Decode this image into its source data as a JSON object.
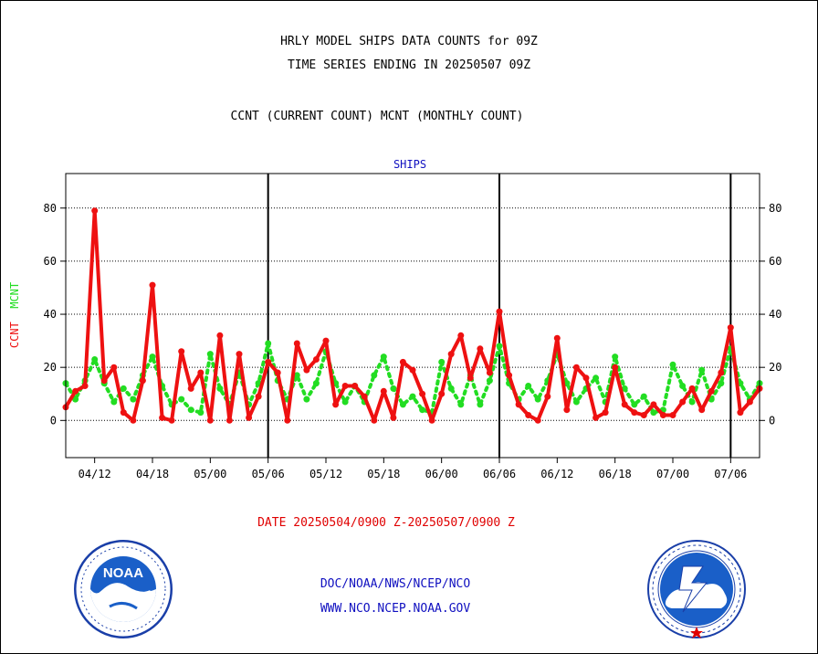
{
  "header": {
    "title_line1": "HRLY MODEL SHIPS DATA COUNTS for 09Z",
    "title_line2": "TIME SERIES ENDING IN 20250507 09Z",
    "title_line3": "CCNT (CURRENT COUNT) MCNT (MONTHLY COUNT)"
  },
  "footer": {
    "date_range": "DATE 20250504/0900 Z-20250507/0900 Z",
    "org": "DOC/NOAA/NWS/NCEP/NCO",
    "url": "WWW.NCO.NCEP.NOAA.GOV"
  },
  "y_axis_label": {
    "ccnt": "CCNT",
    "mcnt": "MCNT"
  },
  "colors": {
    "ccnt": "#ee1111",
    "mcnt": "#22dd22",
    "grid": "#000000",
    "subtitle": "#1010c0",
    "ticks": "#000000"
  },
  "logos": {
    "left": "NOAA",
    "right": "NATIONAL WEATHER SERVICE"
  },
  "chart_data": {
    "type": "line",
    "title": "SHIPS",
    "xlabel": "",
    "ylabel": "CCNT MCNT",
    "ylim": [
      -14,
      93
    ],
    "yticks": [
      0,
      20,
      40,
      60,
      80
    ],
    "xlim": [
      0,
      96
    ],
    "xticks": [
      {
        "pos": 4,
        "label": "04/12"
      },
      {
        "pos": 12,
        "label": "04/18"
      },
      {
        "pos": 20,
        "label": "05/00"
      },
      {
        "pos": 28,
        "label": "05/06"
      },
      {
        "pos": 36,
        "label": "05/12"
      },
      {
        "pos": 44,
        "label": "05/18"
      },
      {
        "pos": 52,
        "label": "06/00"
      },
      {
        "pos": 60,
        "label": "06/06"
      },
      {
        "pos": 68,
        "label": "06/12"
      },
      {
        "pos": 76,
        "label": "06/18"
      },
      {
        "pos": 84,
        "label": "07/00"
      },
      {
        "pos": 92,
        "label": "07/06"
      }
    ],
    "day_separators": [
      28,
      60,
      92
    ],
    "grid": true,
    "series": [
      {
        "name": "CCNT",
        "values": [
          5,
          11,
          13,
          79,
          15,
          20,
          3,
          0,
          15,
          51,
          1,
          0,
          26,
          12,
          18,
          0,
          32,
          0,
          25,
          1,
          9,
          22,
          18,
          0,
          29,
          19,
          23,
          30,
          6,
          13,
          13,
          9,
          0,
          11,
          1,
          22,
          19,
          10,
          0,
          10,
          25,
          32,
          16,
          27,
          18,
          41,
          17,
          6,
          2,
          0,
          9,
          31,
          4,
          20,
          16,
          1,
          3,
          20,
          6,
          3,
          2,
          6,
          2,
          2,
          7,
          12,
          4,
          11,
          18,
          35,
          3,
          7,
          12
        ]
      },
      {
        "name": "MCNT",
        "values": [
          14,
          8,
          15,
          23,
          14,
          7,
          12,
          8,
          17,
          24,
          13,
          6,
          8,
          4,
          3,
          25,
          12,
          6,
          18,
          6,
          14,
          29,
          15,
          8,
          17,
          8,
          14,
          26,
          14,
          7,
          13,
          7,
          17,
          24,
          12,
          6,
          9,
          4,
          3,
          22,
          12,
          6,
          17,
          6,
          15,
          28,
          14,
          8,
          13,
          8,
          15,
          25,
          14,
          7,
          12,
          16,
          7,
          24,
          12,
          6,
          9,
          3,
          4,
          21,
          13,
          7,
          19,
          8,
          14,
          27,
          14,
          8,
          14
        ]
      }
    ]
  }
}
